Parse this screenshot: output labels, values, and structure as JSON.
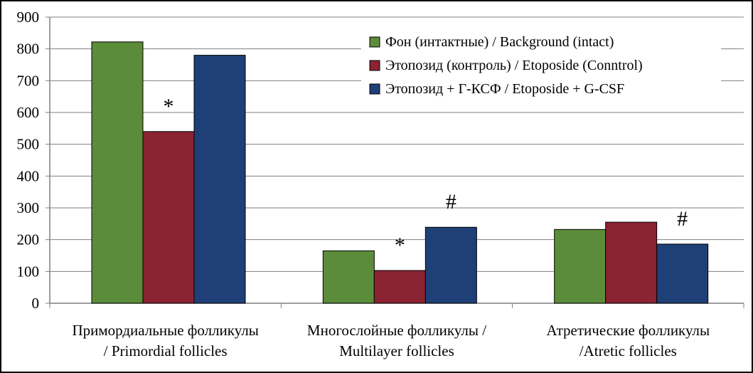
{
  "chart_data": {
    "type": "bar",
    "categories": [
      [
        "Примордиальные фолликулы",
        "/ Primordial follicles"
      ],
      [
        "Многослойные фолликулы /",
        "Multilayer follicles"
      ],
      [
        "Атретические фолликулы",
        "/Atretic follicles"
      ]
    ],
    "series": [
      {
        "name": "Фон (интактные) / Background (intact)",
        "values": [
          822,
          165,
          232
        ],
        "color": "#5b8c3a"
      },
      {
        "name": "Этопозид (контроль) /  Etoposide (Conntrol)",
        "values": [
          540,
          103,
          255
        ],
        "color": "#8b2332"
      },
      {
        "name": "Этопозид + Г-КСФ / Etoposide + G-CSF",
        "values": [
          780,
          239,
          186
        ],
        "color": "#1f3f77"
      }
    ],
    "ylim": [
      0,
      900
    ],
    "yticks": [
      0,
      100,
      200,
      300,
      400,
      500,
      600,
      700,
      800,
      900
    ],
    "grid": true,
    "legend_position": "top-right",
    "annotations": [
      {
        "text": "*",
        "category": 0,
        "series": 1
      },
      {
        "text": "*",
        "category": 1,
        "series": 1
      },
      {
        "text": "#",
        "category": 1,
        "series": 2
      },
      {
        "text": "#",
        "category": 2,
        "series": 2
      }
    ]
  }
}
